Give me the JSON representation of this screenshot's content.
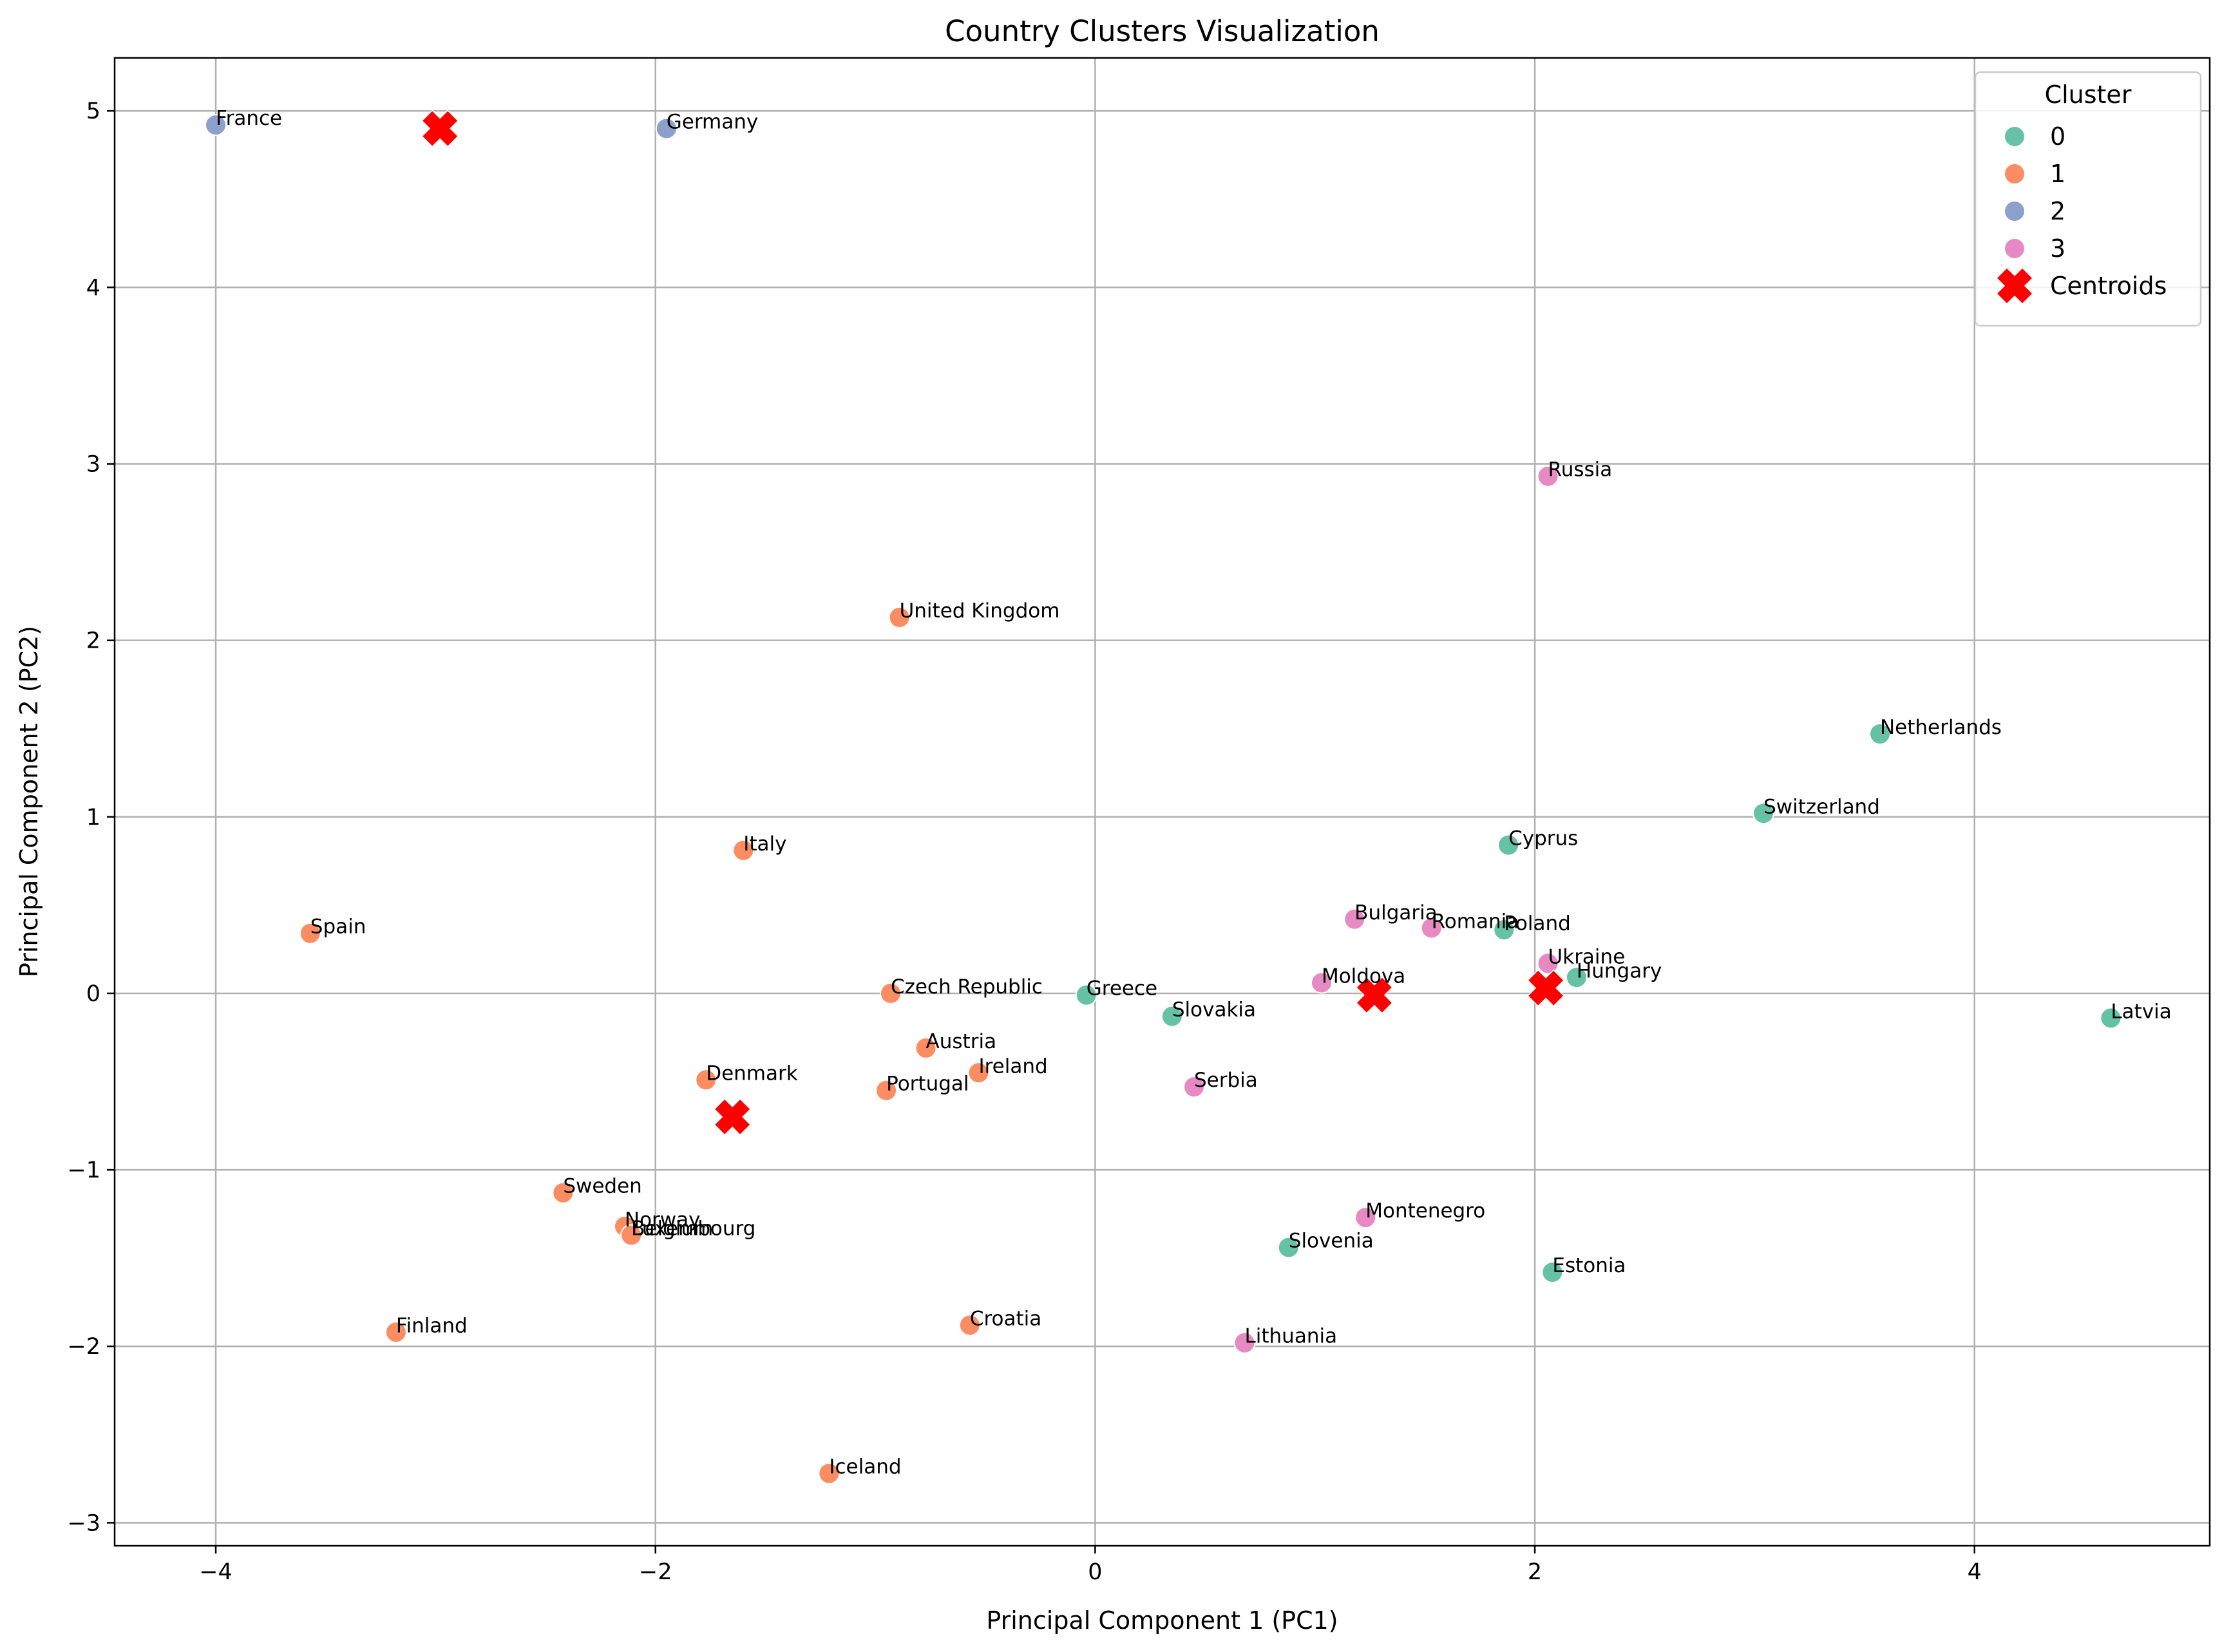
{
  "chart_data": {
    "type": "scatter",
    "title": "Country Clusters Visualization",
    "xlabel": "Principal Component 1 (PC1)",
    "ylabel": "Principal Component 2 (PC2)",
    "xlim": [
      -4.46,
      5.07
    ],
    "ylim": [
      -3.13,
      5.3
    ],
    "xticks": [
      -4,
      -2,
      0,
      2,
      4
    ],
    "xtick_labels": [
      "−4",
      "−2",
      "0",
      "2",
      "4"
    ],
    "yticks": [
      -3,
      -2,
      -1,
      0,
      1,
      2,
      3,
      4,
      5
    ],
    "ytick_labels": [
      "−3",
      "−2",
      "−1",
      "0",
      "1",
      "2",
      "3",
      "4",
      "5"
    ],
    "grid": true,
    "legend": {
      "title": "Cluster",
      "position": "top-right",
      "entries": [
        {
          "label": "0",
          "color": "#66c2a5",
          "marker": "circle"
        },
        {
          "label": "1",
          "color": "#fc8d62",
          "marker": "circle"
        },
        {
          "label": "2",
          "color": "#8da0cb",
          "marker": "circle"
        },
        {
          "label": "3",
          "color": "#e78ac3",
          "marker": "circle"
        },
        {
          "label": "Centroids",
          "color": "#ff0000",
          "marker": "x"
        }
      ]
    },
    "cluster_colors": {
      "0": "#66c2a5",
      "1": "#fc8d62",
      "2": "#8da0cb",
      "3": "#e78ac3"
    },
    "points": [
      {
        "label": "France",
        "x": -4.0,
        "y": 4.92,
        "cluster": 2
      },
      {
        "label": "Germany",
        "x": -1.95,
        "y": 4.9,
        "cluster": 2
      },
      {
        "label": "Russia",
        "x": 2.06,
        "y": 2.93,
        "cluster": 3
      },
      {
        "label": "United Kingdom",
        "x": -0.89,
        "y": 2.13,
        "cluster": 1
      },
      {
        "label": "Netherlands",
        "x": 3.57,
        "y": 1.47,
        "cluster": 0
      },
      {
        "label": "Switzerland",
        "x": 3.04,
        "y": 1.02,
        "cluster": 0
      },
      {
        "label": "Cyprus",
        "x": 1.88,
        "y": 0.84,
        "cluster": 0
      },
      {
        "label": "Italy",
        "x": -1.6,
        "y": 0.81,
        "cluster": 1
      },
      {
        "label": "Spain",
        "x": -3.57,
        "y": 0.34,
        "cluster": 1
      },
      {
        "label": "Bulgaria",
        "x": 1.18,
        "y": 0.42,
        "cluster": 3
      },
      {
        "label": "Romania",
        "x": 1.53,
        "y": 0.37,
        "cluster": 3
      },
      {
        "label": "Poland",
        "x": 1.86,
        "y": 0.36,
        "cluster": 0
      },
      {
        "label": "Ukraine",
        "x": 2.06,
        "y": 0.17,
        "cluster": 3
      },
      {
        "label": "Hungary",
        "x": 2.19,
        "y": 0.09,
        "cluster": 0
      },
      {
        "label": "Moldova",
        "x": 1.03,
        "y": 0.06,
        "cluster": 3
      },
      {
        "label": "Czech Republic",
        "x": -0.93,
        "y": 0.0,
        "cluster": 1
      },
      {
        "label": "Greece",
        "x": -0.04,
        "y": -0.01,
        "cluster": 0
      },
      {
        "label": "Slovakia",
        "x": 0.35,
        "y": -0.13,
        "cluster": 0
      },
      {
        "label": "Latvia",
        "x": 4.62,
        "y": -0.14,
        "cluster": 0
      },
      {
        "label": "Austria",
        "x": -0.77,
        "y": -0.31,
        "cluster": 1
      },
      {
        "label": "Ireland",
        "x": -0.53,
        "y": -0.45,
        "cluster": 1
      },
      {
        "label": "Denmark",
        "x": -1.77,
        "y": -0.49,
        "cluster": 1
      },
      {
        "label": "Portugal",
        "x": -0.95,
        "y": -0.55,
        "cluster": 1
      },
      {
        "label": "Serbia",
        "x": 0.45,
        "y": -0.53,
        "cluster": 3
      },
      {
        "label": "Sweden",
        "x": -2.42,
        "y": -1.13,
        "cluster": 1
      },
      {
        "label": "Montenegro",
        "x": 1.23,
        "y": -1.27,
        "cluster": 3
      },
      {
        "label": "Norway",
        "x": -2.14,
        "y": -1.32,
        "cluster": 1
      },
      {
        "label": "Belgium",
        "x": -2.11,
        "y": -1.37,
        "cluster": 1
      },
      {
        "label": "Luxembourg",
        "x": -2.11,
        "y": -1.37,
        "cluster": 1
      },
      {
        "label": "Slovenia",
        "x": 0.88,
        "y": -1.44,
        "cluster": 0
      },
      {
        "label": "Estonia",
        "x": 2.08,
        "y": -1.58,
        "cluster": 0
      },
      {
        "label": "Finland",
        "x": -3.18,
        "y": -1.92,
        "cluster": 1
      },
      {
        "label": "Croatia",
        "x": -0.57,
        "y": -1.88,
        "cluster": 1
      },
      {
        "label": "Lithuania",
        "x": 0.68,
        "y": -1.98,
        "cluster": 3
      },
      {
        "label": "Iceland",
        "x": -1.21,
        "y": -2.72,
        "cluster": 1
      }
    ],
    "centroids": [
      {
        "x": -2.98,
        "y": 4.9
      },
      {
        "x": -1.65,
        "y": -0.7
      },
      {
        "x": 1.27,
        "y": -0.01
      },
      {
        "x": 2.05,
        "y": 0.03
      }
    ]
  }
}
